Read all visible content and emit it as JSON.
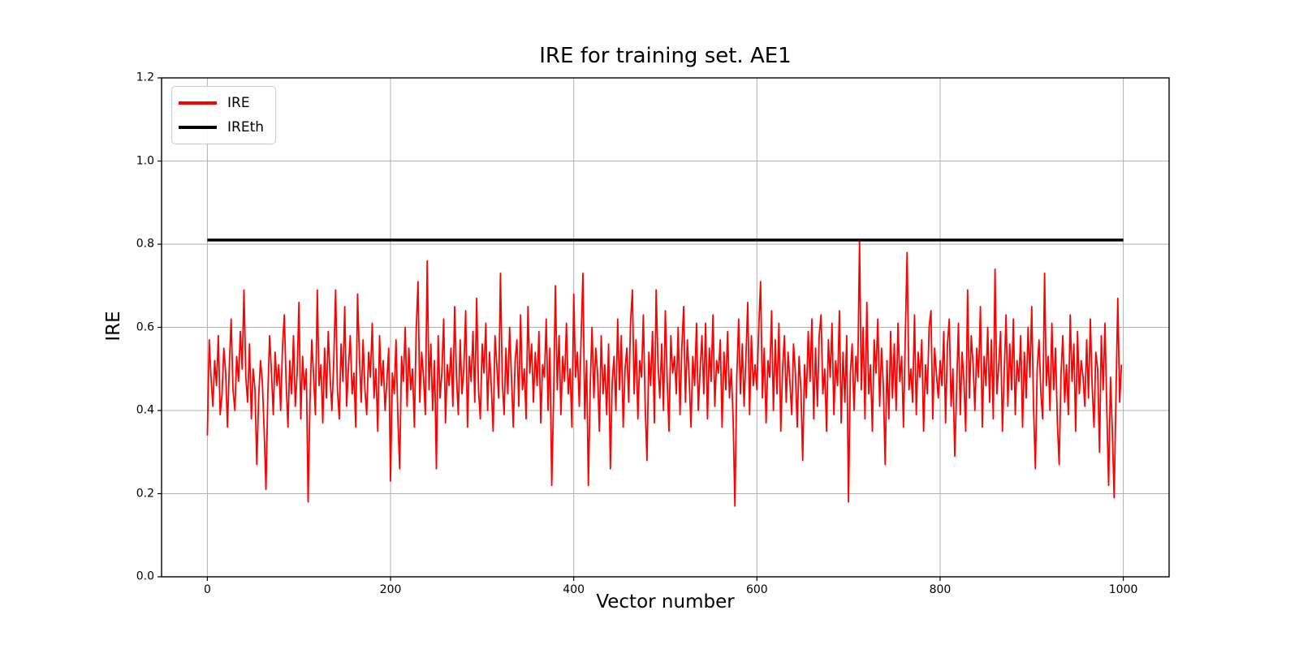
{
  "figure": {
    "title": "IRE for training set. AE1",
    "xlabel": "Vector number",
    "ylabel": "IRE"
  },
  "legend": {
    "entries": [
      {
        "label": "IRE",
        "color": "#ff0000"
      },
      {
        "label": "IREth",
        "color": "#000000"
      }
    ]
  },
  "chart_data": {
    "type": "line",
    "title": "IRE for training set. AE1",
    "xlabel": "Vector number",
    "ylabel": "IRE",
    "xlim": [
      -50,
      1050
    ],
    "ylim": [
      0,
      1.2
    ],
    "xticks": [
      0,
      200,
      400,
      600,
      800,
      1000
    ],
    "ytick_labels": [
      "0.0",
      "0.2",
      "0.4",
      "0.6",
      "0.8",
      "1.0",
      "1.2"
    ],
    "grid": true,
    "grid_color": "#b0b0b0",
    "spine_color": "#000000",
    "legend_position": "upper-left",
    "series": [
      {
        "name": "IRE",
        "color": "#ff0000",
        "line_width": 1.8,
        "x_start": 0,
        "x_step": 2,
        "value_scale": 0.01,
        "values_x100": [
          34,
          57,
          48,
          41,
          52,
          46,
          58,
          39,
          44,
          55,
          49,
          36,
          51,
          62,
          45,
          40,
          53,
          47,
          59,
          50,
          69,
          48,
          42,
          56,
          38,
          50,
          45,
          27,
          43,
          52,
          47,
          35,
          21,
          44,
          58,
          49,
          39,
          54,
          46,
          51,
          40,
          55,
          63,
          47,
          36,
          52,
          44,
          58,
          41,
          49,
          66,
          38,
          53,
          45,
          50,
          18,
          42,
          57,
          48,
          39,
          69,
          46,
          51,
          37,
          55,
          43,
          59,
          48,
          40,
          52,
          69,
          45,
          38,
          56,
          47,
          65,
          41,
          50,
          58,
          44,
          49,
          36,
          68,
          53,
          42,
          57,
          45,
          39,
          54,
          48,
          61,
          43,
          50,
          35,
          58,
          46,
          52,
          40,
          47,
          55,
          23,
          49,
          44,
          57,
          38,
          26,
          53,
          47,
          60,
          41,
          55,
          45,
          50,
          36,
          59,
          71,
          42,
          54,
          48,
          39,
          76,
          45,
          56,
          40,
          52,
          26,
          58,
          43,
          49,
          62,
          37,
          51,
          46,
          55,
          41,
          65,
          48,
          39,
          57,
          44,
          50,
          64,
          36,
          53,
          47,
          59,
          42,
          67,
          45,
          38,
          56,
          49,
          61,
          40,
          54,
          46,
          35,
          58,
          51,
          43,
          73,
          47,
          39,
          55,
          44,
          60,
          48,
          36,
          52,
          57,
          41,
          63,
          45,
          50,
          38,
          65,
          49,
          56,
          42,
          54,
          46,
          59,
          37,
          51,
          48,
          62,
          40,
          55,
          22,
          43,
          70,
          45,
          58,
          39,
          53,
          47,
          61,
          44,
          50,
          36,
          68,
          48,
          54,
          41,
          57,
          73,
          38,
          52,
          22,
          46,
          60,
          43,
          55,
          49,
          35,
          58,
          44,
          51,
          39,
          56,
          26,
          47,
          53,
          40,
          62,
          45,
          58,
          36,
          50,
          55,
          42,
          61,
          69,
          44,
          57,
          38,
          52,
          48,
          63,
          41,
          28,
          54,
          46,
          59,
          37,
          69,
          51,
          43,
          56,
          40,
          64,
          47,
          35,
          58,
          49,
          53,
          44,
          60,
          39,
          55,
          65,
          42,
          57,
          48,
          36,
          53,
          46,
          61,
          40,
          50,
          58,
          44,
          61,
          38,
          55,
          47,
          63,
          41,
          52,
          49,
          57,
          36,
          54,
          45,
          59,
          43,
          50,
          38,
          17,
          48,
          62,
          44,
          56,
          41,
          53,
          66,
          39,
          58,
          46,
          51,
          45,
          60,
          71,
          43,
          55,
          37,
          52,
          48,
          64,
          40,
          57,
          44,
          61,
          35,
          50,
          58,
          42,
          54,
          47,
          39,
          56,
          49,
          36,
          53,
          45,
          28,
          51,
          43,
          59,
          47,
          62,
          38,
          55,
          41,
          58,
          63,
          44,
          50,
          35,
          57,
          48,
          61,
          39,
          52,
          46,
          64,
          37,
          54,
          42,
          58,
          18,
          49,
          56,
          40,
          53,
          47,
          81,
          45,
          60,
          38,
          66,
          44,
          51,
          35,
          57,
          49,
          62,
          41,
          55,
          46,
          27,
          52,
          38,
          59,
          43,
          56,
          40,
          61,
          47,
          53,
          36,
          58,
          78,
          45,
          50,
          42,
          63,
          39,
          54,
          48,
          57,
          35,
          51,
          44,
          60,
          64,
          38,
          55,
          49,
          43,
          52,
          46,
          59,
          37,
          56,
          62,
          41,
          50,
          29,
          45,
          61,
          39,
          54,
          47,
          35,
          69,
          43,
          58,
          51,
          40,
          55,
          48,
          65,
          36,
          53,
          46,
          60,
          42,
          57,
          38,
          74,
          44,
          51,
          59,
          35,
          49,
          63,
          41,
          56,
          45,
          62,
          39,
          52,
          47,
          58,
          36,
          54,
          43,
          60,
          48,
          65,
          41,
          26,
          50,
          57,
          44,
          38,
          73,
          46,
          53,
          40,
          61,
          45,
          55,
          37,
          27,
          49,
          58,
          42,
          51,
          39,
          63,
          47,
          56,
          35,
          59,
          44,
          52,
          48,
          41,
          57,
          43,
          62,
          46,
          36,
          54,
          50,
          30,
          58,
          45,
          61,
          40,
          22,
          48,
          35,
          19,
          44,
          67,
          42,
          51
        ]
      },
      {
        "name": "IREth",
        "type": "hline",
        "color": "#000000",
        "line_width": 3.5,
        "y": 0.81,
        "x_range": [
          0,
          1000
        ]
      }
    ]
  }
}
